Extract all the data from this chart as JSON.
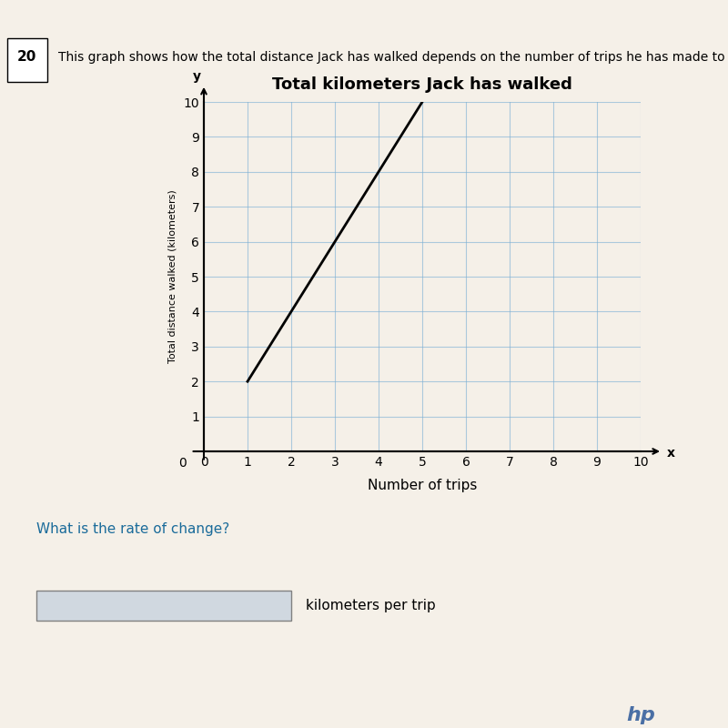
{
  "title": "Total kilometers Jack has walked",
  "xlabel": "Number of trips",
  "ylabel": "Total distance walked (kilometers)",
  "xlim": [
    0,
    10
  ],
  "ylim": [
    0,
    10
  ],
  "xticks": [
    0,
    1,
    2,
    3,
    4,
    5,
    6,
    7,
    8,
    9,
    10
  ],
  "yticks": [
    1,
    2,
    3,
    4,
    5,
    6,
    7,
    8,
    9,
    10
  ],
  "line_x": [
    1,
    5
  ],
  "line_y": [
    2,
    10
  ],
  "line_color": "#000000",
  "line_width": 2.0,
  "grid_color": "#7bafd4",
  "grid_alpha": 0.6,
  "background_color": "#f5f0e8",
  "plot_bg_color": "#f5f0e8",
  "title_fontsize": 13,
  "axis_label_fontsize": 11,
  "tick_fontsize": 10,
  "question_number": "20",
  "question_text": "This graph shows how the total distance Jack has walked depends on the number of trips he has made to school.",
  "bottom_text": "What is the rate of change?",
  "bottom_label": "kilometers per trip",
  "figsize": [
    8.0,
    8.0
  ]
}
